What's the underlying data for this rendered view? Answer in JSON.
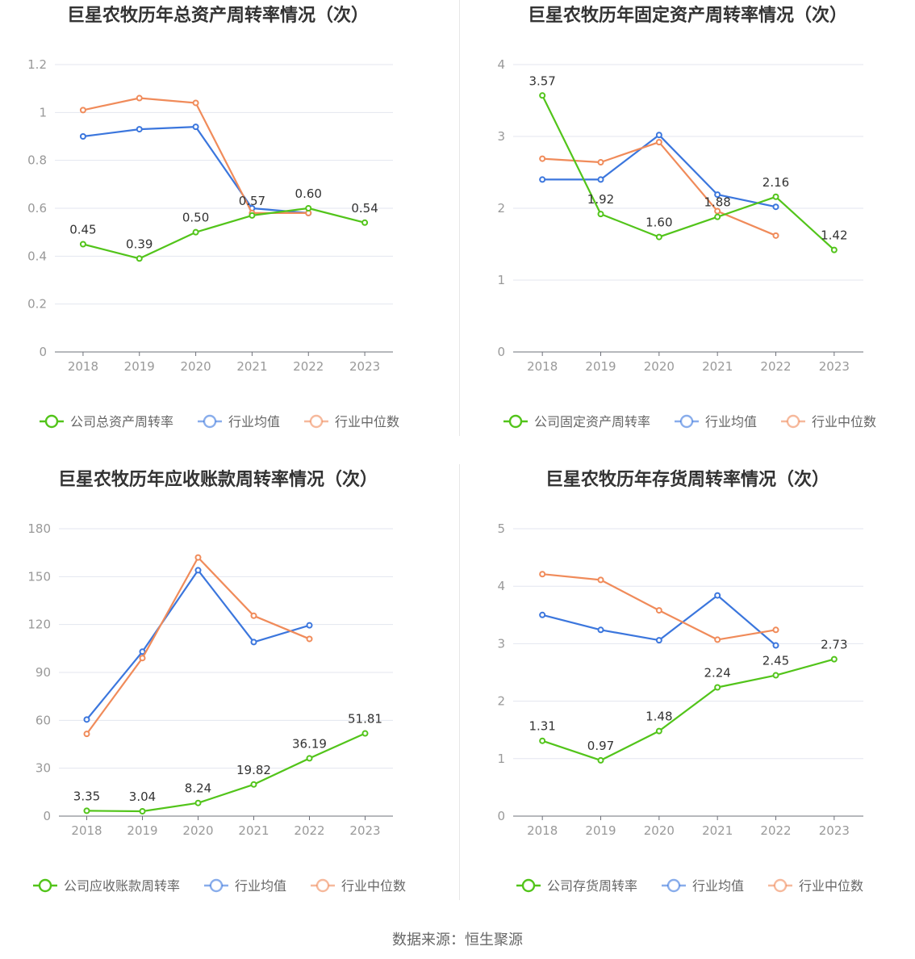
{
  "source": "数据来源：恒生聚源",
  "chart_data": [
    {
      "type": "line",
      "title": "巨星农牧历年总资产周转率情况（次）",
      "categories": [
        "2018",
        "2019",
        "2020",
        "2021",
        "2022",
        "2023"
      ],
      "ylim": [
        0,
        1.2
      ],
      "yticks": [
        0,
        0.2,
        0.4,
        0.6,
        0.8,
        1,
        1.2
      ],
      "ytick_labels": [
        "0",
        "0.2",
        "0.4",
        "0.6",
        "0.8",
        "1",
        "1.2"
      ],
      "grid": true,
      "legend_position": "bottom",
      "series": [
        {
          "name": "公司总资产周转率",
          "color": "#52c41a",
          "labeled": true,
          "values": [
            0.45,
            0.39,
            0.5,
            0.57,
            0.6,
            0.54
          ],
          "labels": [
            "0.45",
            "0.39",
            "0.50",
            "0.57",
            "0.60",
            "0.54"
          ]
        },
        {
          "name": "行业均值",
          "color": "#3b76dd",
          "values": [
            0.9,
            0.93,
            0.94,
            0.6,
            0.58,
            null
          ]
        },
        {
          "name": "行业中位数",
          "color": "#f08b5a",
          "values": [
            1.01,
            1.06,
            1.04,
            0.58,
            0.58,
            null
          ]
        }
      ]
    },
    {
      "type": "line",
      "title": "巨星农牧历年固定资产周转率情况（次）",
      "categories": [
        "2018",
        "2019",
        "2020",
        "2021",
        "2022",
        "2023"
      ],
      "ylim": [
        0,
        4
      ],
      "yticks": [
        0,
        1,
        2,
        3,
        4
      ],
      "ytick_labels": [
        "0",
        "1",
        "2",
        "3",
        "4"
      ],
      "grid": true,
      "legend_position": "bottom",
      "series": [
        {
          "name": "公司固定资产周转率",
          "color": "#52c41a",
          "labeled": true,
          "values": [
            3.57,
            1.92,
            1.6,
            1.88,
            2.16,
            1.42
          ],
          "labels": [
            "3.57",
            "1.92",
            "1.60",
            "1.88",
            "2.16",
            "1.42"
          ]
        },
        {
          "name": "行业均值",
          "color": "#3b76dd",
          "values": [
            2.4,
            2.4,
            3.02,
            2.19,
            2.02,
            null
          ]
        },
        {
          "name": "行业中位数",
          "color": "#f08b5a",
          "values": [
            2.69,
            2.64,
            2.92,
            1.96,
            1.62,
            null
          ]
        }
      ]
    },
    {
      "type": "line",
      "title": "巨星农牧历年应收账款周转率情况（次）",
      "categories": [
        "2018",
        "2019",
        "2020",
        "2021",
        "2022",
        "2023"
      ],
      "ylim": [
        0,
        180
      ],
      "yticks": [
        0,
        30,
        60,
        90,
        120,
        150,
        180
      ],
      "ytick_labels": [
        "0",
        "30",
        "60",
        "90",
        "120",
        "150",
        "180"
      ],
      "grid": true,
      "legend_position": "bottom",
      "series": [
        {
          "name": "公司应收账款周转率",
          "color": "#52c41a",
          "labeled": true,
          "values": [
            3.35,
            3.04,
            8.24,
            19.82,
            36.19,
            51.81
          ],
          "labels": [
            "3.35",
            "3.04",
            "8.24",
            "19.82",
            "36.19",
            "51.81"
          ]
        },
        {
          "name": "行业均值",
          "color": "#3b76dd",
          "values": [
            60.5,
            103,
            154,
            109,
            119.5,
            null
          ]
        },
        {
          "name": "行业中位数",
          "color": "#f08b5a",
          "values": [
            51.5,
            99,
            162,
            125.5,
            111,
            null
          ]
        }
      ]
    },
    {
      "type": "line",
      "title": "巨星农牧历年存货周转率情况（次）",
      "categories": [
        "2018",
        "2019",
        "2020",
        "2021",
        "2022",
        "2023"
      ],
      "ylim": [
        0,
        5
      ],
      "yticks": [
        0,
        1,
        2,
        3,
        4,
        5
      ],
      "ytick_labels": [
        "0",
        "1",
        "2",
        "3",
        "4",
        "5"
      ],
      "grid": true,
      "legend_position": "bottom",
      "series": [
        {
          "name": "公司存货周转率",
          "color": "#52c41a",
          "labeled": true,
          "values": [
            1.31,
            0.97,
            1.48,
            2.24,
            2.45,
            2.73
          ],
          "labels": [
            "1.31",
            "0.97",
            "1.48",
            "2.24",
            "2.45",
            "2.73"
          ]
        },
        {
          "name": "行业均值",
          "color": "#3b76dd",
          "values": [
            3.5,
            3.24,
            3.06,
            3.84,
            2.97,
            null
          ]
        },
        {
          "name": "行业中位数",
          "color": "#f08b5a",
          "values": [
            4.21,
            4.11,
            3.58,
            3.07,
            3.24,
            null
          ]
        }
      ]
    }
  ]
}
